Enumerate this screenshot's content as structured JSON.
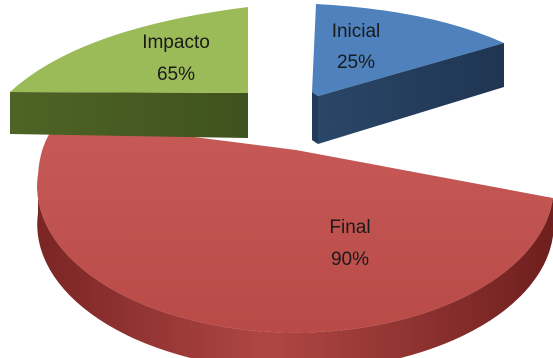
{
  "chart_data": {
    "type": "pie",
    "style": "3d-exploded",
    "slices": [
      {
        "name": "Inicial",
        "label": "25%",
        "value": 25,
        "color": "#4f81bd"
      },
      {
        "name": "Final",
        "label": "90%",
        "value": 90,
        "color": "#c0504d"
      },
      {
        "name": "Impacto",
        "label": "65%",
        "value": 65,
        "color": "#9bbb59"
      }
    ],
    "legend": "none",
    "title": ""
  }
}
